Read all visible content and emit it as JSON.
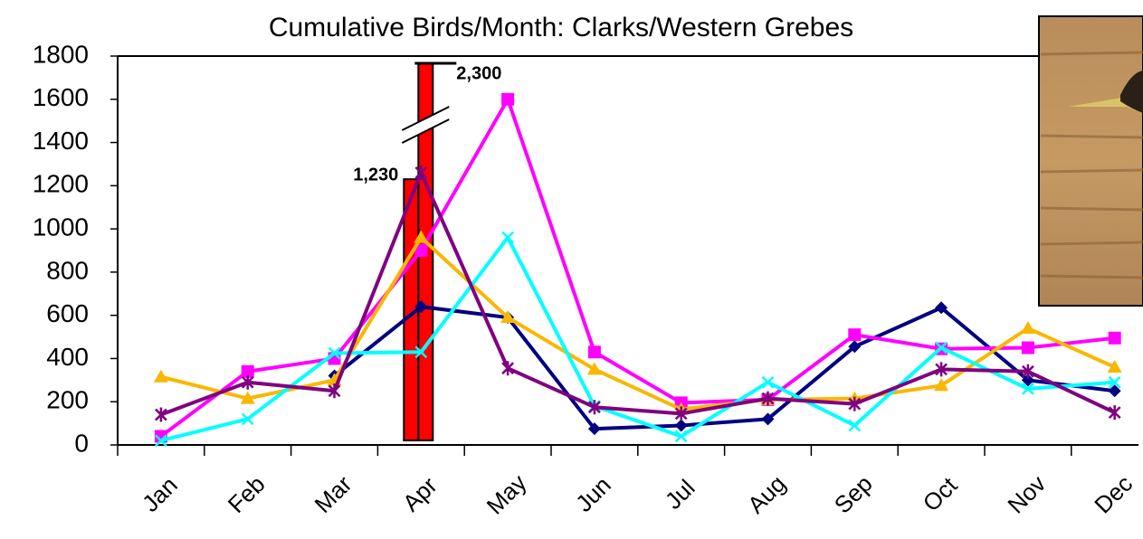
{
  "chart_data": {
    "type": "line",
    "title": "Cumulative Birds/Month: Clarks/Western Grebes",
    "categories": [
      "Jan",
      "Feb",
      "Mar",
      "Apr",
      "May",
      "Jun",
      "Jul",
      "Aug",
      "Sep",
      "Oct",
      "Nov",
      "Dec"
    ],
    "ylim": [
      0,
      1800
    ],
    "yticks": [
      0,
      200,
      400,
      600,
      800,
      1000,
      1200,
      1400,
      1600,
      1800
    ],
    "series": [
      {
        "type": "bar",
        "color": "#ff0000",
        "values": [
          null,
          null,
          null,
          1230,
          null,
          null,
          null,
          null,
          null,
          null,
          null,
          null
        ],
        "value_labels": [
          null,
          null,
          null,
          "1,230",
          null,
          null,
          null,
          null,
          null,
          null,
          null,
          null
        ]
      },
      {
        "type": "bar",
        "color": "#ff0000",
        "broken": true,
        "values": [
          null,
          null,
          null,
          2300,
          null,
          null,
          null,
          null,
          null,
          null,
          null,
          null
        ],
        "value_labels": [
          null,
          null,
          null,
          "2,300",
          null,
          null,
          null,
          null,
          null,
          null,
          null,
          null
        ]
      },
      {
        "color": "#000080",
        "marker": "diamond",
        "values": [
          null,
          null,
          320,
          640,
          590,
          75,
          90,
          120,
          455,
          635,
          300,
          250
        ]
      },
      {
        "color": "#ff00ff",
        "marker": "square",
        "values": [
          40,
          340,
          400,
          900,
          1600,
          430,
          195,
          210,
          510,
          445,
          450,
          495
        ]
      },
      {
        "color": "#f9b700",
        "marker": "triangle",
        "values": [
          315,
          215,
          300,
          960,
          590,
          350,
          165,
          210,
          215,
          275,
          540,
          360
        ]
      },
      {
        "color": "#00ffff",
        "marker": "x",
        "values": [
          20,
          120,
          425,
          430,
          960,
          180,
          40,
          290,
          90,
          450,
          260,
          290
        ]
      },
      {
        "color": "#800080",
        "marker": "star",
        "values": [
          140,
          290,
          250,
          1260,
          355,
          175,
          145,
          215,
          190,
          350,
          340,
          150
        ]
      }
    ]
  }
}
